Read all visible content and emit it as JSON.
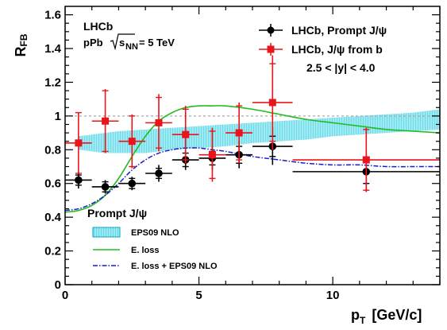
{
  "chart_data": {
    "type": "scatter",
    "ylabel": "R",
    "ylabel_sub": "FB",
    "xlabel": "p",
    "xlabel_sub": "T",
    "xlabel_unit": "[GeV/c]",
    "xlim": [
      0,
      14
    ],
    "ylim": [
      0,
      1.65
    ],
    "x_ticks": [
      0,
      5,
      10
    ],
    "y_ticks": [
      0,
      0.2,
      0.4,
      0.6,
      0.8,
      1,
      1.2,
      1.4,
      1.6
    ],
    "y_tick_labels": [
      "0",
      "0.2",
      "0.4",
      "0.6",
      "0.8",
      "1",
      "1.2",
      "1.4",
      "1.6"
    ],
    "reference_line": 1.0,
    "experiment_label": "LHCb",
    "system_label": "pPb",
    "energy_label_sqrt": "s",
    "energy_label_sub": "NN",
    "energy_label_value": "= 5 TeV",
    "rapidity_label": "2.5 < |y| < 4.0",
    "theory_group_label": "Prompt J/ψ",
    "legend_top": [
      "LHCb, Prompt J/ψ",
      "LHCb, J/ψ from b"
    ],
    "legend_bottom": [
      "EPS09 NLO",
      "E. loss",
      "E. loss + EPS09 NLO"
    ],
    "colors": {
      "prompt": "#000000",
      "from_b": "#e8161c",
      "eps09_band": "#66d9e8",
      "eloss": "#22bb22",
      "eloss_eps09": "#1a1acc"
    },
    "series": [
      {
        "name": "LHCb, Prompt J/ψ",
        "points": [
          {
            "x": 0.5,
            "xlo": 0,
            "xhi": 1,
            "y": 0.62,
            "ystat": 0.03,
            "ysys": 0.05
          },
          {
            "x": 1.5,
            "xlo": 1,
            "xhi": 2,
            "y": 0.58,
            "ystat": 0.03,
            "ysys": 0.04
          },
          {
            "x": 2.5,
            "xlo": 2,
            "xhi": 3,
            "y": 0.6,
            "ystat": 0.03,
            "ysys": 0.04
          },
          {
            "x": 3.5,
            "xlo": 3,
            "xhi": 4,
            "y": 0.66,
            "ystat": 0.03,
            "ysys": 0.05
          },
          {
            "x": 4.5,
            "xlo": 4,
            "xhi": 5,
            "y": 0.74,
            "ystat": 0.04,
            "ysys": 0.06
          },
          {
            "x": 5.5,
            "xlo": 5,
            "xhi": 6,
            "y": 0.75,
            "ystat": 0.04,
            "ysys": 0.07
          },
          {
            "x": 6.5,
            "xlo": 6,
            "xhi": 7,
            "y": 0.77,
            "ystat": 0.05,
            "ysys": 0.08
          },
          {
            "x": 7.75,
            "xlo": 7,
            "xhi": 8.5,
            "y": 0.82,
            "ystat": 0.06,
            "ysys": 0.11
          },
          {
            "x": 11.25,
            "xlo": 8.5,
            "xhi": 14,
            "y": 0.67,
            "ystat": 0.07,
            "ysys": 0.12
          }
        ]
      },
      {
        "name": "LHCb, J/ψ from b",
        "points": [
          {
            "x": 0.5,
            "xlo": 0,
            "xhi": 1,
            "y": 0.84,
            "ystat": 0.18,
            "ysys": 0.18
          },
          {
            "x": 1.5,
            "xlo": 1,
            "xhi": 2,
            "y": 0.97,
            "ystat": 0.18,
            "ysys": 0.19
          },
          {
            "x": 2.5,
            "xlo": 2,
            "xhi": 3,
            "y": 0.85,
            "ystat": 0.15,
            "ysys": 0.16
          },
          {
            "x": 3.5,
            "xlo": 3,
            "xhi": 4,
            "y": 0.96,
            "ystat": 0.15,
            "ysys": 0.17
          },
          {
            "x": 4.5,
            "xlo": 4,
            "xhi": 5,
            "y": 0.89,
            "ystat": 0.15,
            "ysys": 0.17
          },
          {
            "x": 5.5,
            "xlo": 5,
            "xhi": 6,
            "y": 0.77,
            "ystat": 0.14,
            "ysys": 0.16
          },
          {
            "x": 6.5,
            "xlo": 6,
            "xhi": 7,
            "y": 0.9,
            "ystat": 0.16,
            "ysys": 0.18
          },
          {
            "x": 7.75,
            "xlo": 7,
            "xhi": 8.5,
            "y": 1.08,
            "ystat": 0.23,
            "ysys": 0.28
          },
          {
            "x": 11.25,
            "xlo": 8.5,
            "xhi": 14,
            "y": 0.74,
            "ystat": 0.18,
            "ysys": 0.19
          }
        ]
      }
    ],
    "eps09_band": {
      "x": [
        0.5,
        1,
        1.5,
        2,
        3,
        4,
        5,
        6,
        7,
        8,
        9,
        10,
        11,
        12,
        13,
        14
      ],
      "lo": [
        0.8,
        0.79,
        0.78,
        0.78,
        0.78,
        0.8,
        0.81,
        0.82,
        0.84,
        0.85,
        0.86,
        0.88,
        0.89,
        0.9,
        0.91,
        0.92
      ],
      "hi": [
        0.88,
        0.89,
        0.9,
        0.91,
        0.92,
        0.93,
        0.94,
        0.95,
        0.96,
        0.97,
        0.98,
        0.99,
        1.0,
        1.01,
        1.02,
        1.04
      ]
    },
    "eloss_curve": {
      "x": [
        0,
        0.5,
        1,
        1.5,
        2,
        2.5,
        3,
        3.5,
        4,
        4.5,
        5,
        5.5,
        6,
        7,
        8,
        9,
        10,
        11,
        12,
        13,
        14
      ],
      "y": [
        0.43,
        0.44,
        0.47,
        0.53,
        0.63,
        0.76,
        0.88,
        0.97,
        1.02,
        1.05,
        1.06,
        1.06,
        1.06,
        1.04,
        1.01,
        0.98,
        0.96,
        0.94,
        0.92,
        0.91,
        0.9
      ]
    },
    "eloss_eps09_curve": {
      "x": [
        0,
        0.5,
        1,
        1.5,
        2,
        2.5,
        3,
        3.5,
        4,
        4.5,
        5,
        5.5,
        6,
        7,
        8,
        9,
        10,
        11,
        12,
        13,
        14
      ],
      "y": [
        0.44,
        0.45,
        0.48,
        0.53,
        0.6,
        0.68,
        0.74,
        0.78,
        0.8,
        0.81,
        0.81,
        0.8,
        0.79,
        0.76,
        0.74,
        0.72,
        0.71,
        0.71,
        0.7,
        0.7,
        0.7
      ]
    }
  }
}
